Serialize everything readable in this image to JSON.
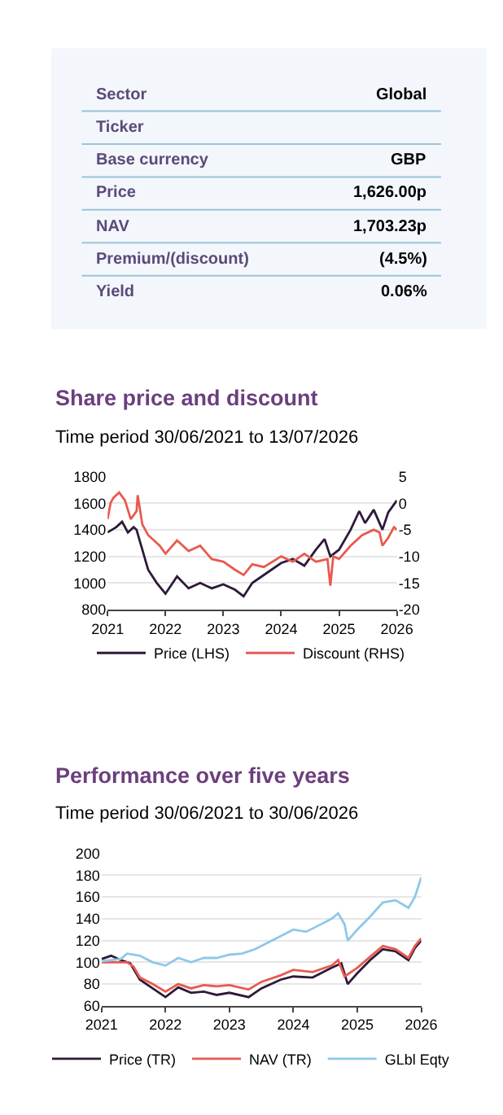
{
  "chart_data": [
    {
      "type": "other",
      "categories": [
        "Sector",
        "Ticker",
        "Base currency",
        "Price",
        "NAV",
        "Premium/(discount)",
        "Yield"
      ],
      "value_labels": [
        "Global",
        null,
        "GBP",
        "1,626.00p",
        "1,703.23p",
        "(4.5%)",
        "0.06%"
      ]
    },
    {
      "type": "line",
      "title": "Share price and discount",
      "subtitle": "Time period 30/06/2021 to 13/07/2026",
      "xlim": [
        2021,
        2026
      ],
      "xticks": [
        2021,
        2022,
        2023,
        2024,
        2025,
        2026
      ],
      "ylim": [
        800,
        1800
      ],
      "yticks": [
        800,
        1000,
        1200,
        1400,
        1600,
        1800
      ],
      "y2lim": [
        -20,
        5
      ],
      "y2ticks": [
        -20,
        -15,
        -10,
        -5,
        0,
        5
      ],
      "grid": "y",
      "legend": "bottom",
      "series": [
        {
          "name": "Price (LHS)",
          "color": "#2e1a3a",
          "x": [
            2021.0,
            2021.15,
            2021.25,
            2021.35,
            2021.45,
            2021.5,
            2021.6,
            2021.7,
            2021.85,
            2022.0,
            2022.2,
            2022.4,
            2022.6,
            2022.8,
            2023.0,
            2023.2,
            2023.35,
            2023.5,
            2023.7,
            2024.0,
            2024.2,
            2024.4,
            2024.6,
            2024.75,
            2024.85,
            2025.0,
            2025.2,
            2025.35,
            2025.45,
            2025.6,
            2025.75,
            2025.85,
            2026.0
          ],
          "values": [
            1380,
            1420,
            1460,
            1380,
            1420,
            1400,
            1250,
            1100,
            1000,
            920,
            1050,
            960,
            1000,
            960,
            990,
            950,
            900,
            1000,
            1060,
            1150,
            1180,
            1130,
            1250,
            1330,
            1200,
            1250,
            1400,
            1540,
            1450,
            1550,
            1400,
            1530,
            1620
          ]
        },
        {
          "name": "Discount (RHS)",
          "color": "#e85a4f",
          "axis": "y2",
          "x": [
            2021.0,
            2021.05,
            2021.1,
            2021.2,
            2021.3,
            2021.4,
            2021.5,
            2021.52,
            2021.6,
            2021.7,
            2021.9,
            2022.0,
            2022.2,
            2022.4,
            2022.6,
            2022.8,
            2023.0,
            2023.2,
            2023.35,
            2023.5,
            2023.7,
            2024.0,
            2024.2,
            2024.4,
            2024.6,
            2024.8,
            2024.85,
            2024.9,
            2025.0,
            2025.2,
            2025.4,
            2025.6,
            2025.7,
            2025.75,
            2025.85,
            2025.95,
            2026.0
          ],
          "values": [
            -3,
            0,
            1,
            2,
            0.5,
            -3,
            -1.5,
            1.5,
            -4,
            -6,
            -8,
            -9.5,
            -7,
            -9,
            -8,
            -10.5,
            -11,
            -12.5,
            -13.5,
            -11.5,
            -12,
            -10,
            -11,
            -9.5,
            -11,
            -10.5,
            -15.5,
            -10,
            -10.5,
            -8,
            -6,
            -5,
            -5.5,
            -8,
            -6.5,
            -4.5,
            -5
          ]
        }
      ]
    },
    {
      "type": "line",
      "title": "Performance over five years",
      "subtitle": "Time period 30/06/2021 to 30/06/2026",
      "xlim": [
        2021,
        2026
      ],
      "xticks": [
        2021,
        2022,
        2023,
        2024,
        2025,
        2026
      ],
      "ylim": [
        60,
        200
      ],
      "yticks": [
        60,
        80,
        100,
        120,
        140,
        160,
        180,
        200
      ],
      "grid": "y",
      "legend": "bottom",
      "series": [
        {
          "name": "Price (TR)",
          "color": "#2e1a3a",
          "x": [
            2021.0,
            2021.15,
            2021.3,
            2021.45,
            2021.6,
            2021.8,
            2022.0,
            2022.2,
            2022.4,
            2022.6,
            2022.8,
            2023.0,
            2023.3,
            2023.5,
            2023.8,
            2024.0,
            2024.3,
            2024.6,
            2024.75,
            2024.85,
            2025.0,
            2025.2,
            2025.4,
            2025.6,
            2025.8,
            2025.9,
            2026.0
          ],
          "values": [
            103,
            106,
            102,
            99,
            84,
            76,
            68,
            77,
            72,
            73,
            70,
            72,
            68,
            76,
            84,
            87,
            86,
            95,
            99,
            80,
            90,
            102,
            112,
            110,
            102,
            113,
            120
          ]
        },
        {
          "name": "NAV (TR)",
          "color": "#e85a4f",
          "x": [
            2021.0,
            2021.2,
            2021.4,
            2021.5,
            2021.6,
            2021.8,
            2022.0,
            2022.2,
            2022.4,
            2022.6,
            2022.8,
            2023.0,
            2023.3,
            2023.5,
            2023.8,
            2024.0,
            2024.3,
            2024.6,
            2024.7,
            2024.8,
            2025.0,
            2025.2,
            2025.4,
            2025.6,
            2025.8,
            2025.9,
            2026.0
          ],
          "values": [
            100,
            100,
            100,
            96,
            86,
            80,
            73,
            80,
            76,
            79,
            78,
            79,
            75,
            82,
            88,
            93,
            91,
            97,
            102,
            87,
            95,
            105,
            115,
            112,
            104,
            115,
            122
          ]
        },
        {
          "name": "GLbl Eqty",
          "color": "#8ec8ea",
          "x": [
            2021.0,
            2021.3,
            2021.4,
            2021.6,
            2021.8,
            2022.0,
            2022.2,
            2022.4,
            2022.6,
            2022.8,
            2023.0,
            2023.2,
            2023.4,
            2023.6,
            2023.8,
            2024.0,
            2024.2,
            2024.4,
            2024.6,
            2024.7,
            2024.8,
            2024.85,
            2025.0,
            2025.2,
            2025.4,
            2025.6,
            2025.8,
            2025.9,
            2026.0
          ],
          "values": [
            101,
            103,
            108,
            106,
            100,
            97,
            104,
            100,
            104,
            104,
            107,
            108,
            112,
            118,
            124,
            130,
            128,
            134,
            140,
            145,
            135,
            120,
            130,
            142,
            155,
            157,
            150,
            160,
            178
          ]
        }
      ]
    }
  ]
}
